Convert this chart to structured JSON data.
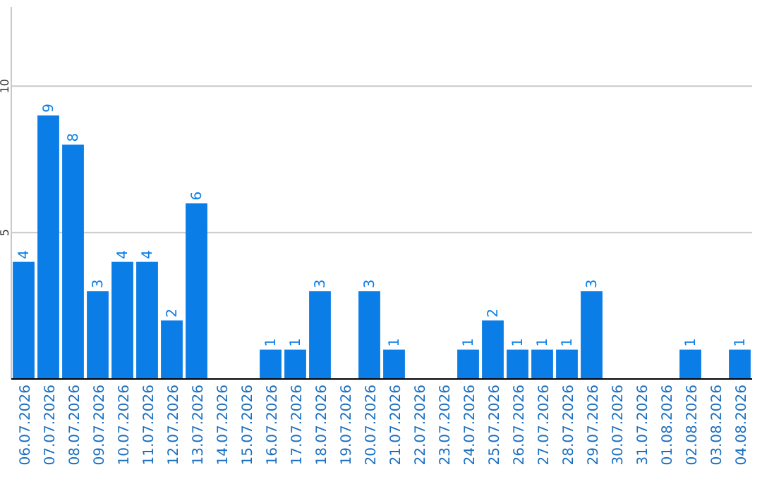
{
  "chart_data": {
    "type": "bar",
    "categories": [
      "06.07.2026",
      "07.07.2026",
      "08.07.2026",
      "09.07.2026",
      "10.07.2026",
      "11.07.2026",
      "12.07.2026",
      "13.07.2026",
      "14.07.2026",
      "15.07.2026",
      "16.07.2026",
      "17.07.2026",
      "18.07.2026",
      "19.07.2026",
      "20.07.2026",
      "21.07.2026",
      "22.07.2026",
      "23.07.2026",
      "24.07.2026",
      "25.07.2026",
      "26.07.2026",
      "27.07.2026",
      "28.07.2026",
      "29.07.2026",
      "30.07.2026",
      "31.07.2026",
      "01.08.2026",
      "02.08.2026",
      "03.08.2026",
      "04.08.2026"
    ],
    "values": [
      4,
      9,
      8,
      3,
      4,
      4,
      2,
      6,
      0,
      0,
      1,
      1,
      3,
      0,
      3,
      1,
      0,
      0,
      1,
      2,
      1,
      1,
      1,
      3,
      0,
      0,
      0,
      1,
      0,
      1
    ],
    "value_labels": [
      "4",
      "9",
      "8",
      "3",
      "4",
      "4",
      "2",
      "6",
      null,
      null,
      "1",
      "1",
      "3",
      null,
      "3",
      "1",
      null,
      null,
      "1",
      "2",
      "1",
      "1",
      "1",
      "3",
      null,
      null,
      null,
      "1",
      null,
      "1"
    ],
    "color": "#0a7de6",
    "ylim": [
      0,
      12.7
    ],
    "yticks": [
      {
        "value": 0,
        "label": null
      },
      5,
      10
    ],
    "grid": "y"
  }
}
